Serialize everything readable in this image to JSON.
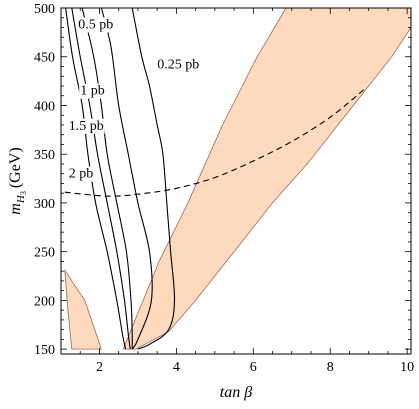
{
  "chart_data": {
    "type": "line",
    "xlabel": "tan β",
    "ylabel": "m_{H3} (GeV)",
    "ylabel_main": "m",
    "ylabel_sub": "H",
    "ylabel_subsub": "3",
    "ylabel_unit": "(GeV)",
    "xlim": [
      1,
      10.1
    ],
    "ylim": [
      145,
      500
    ],
    "x_ticks": [
      2,
      4,
      6,
      8,
      10
    ],
    "y_ticks": [
      150,
      200,
      250,
      300,
      350,
      400,
      450,
      500
    ],
    "grid": false,
    "colors": {
      "shaded_fill": "#fdd9bd",
      "shaded_edge": "#a0675a",
      "lines": "#000000"
    },
    "shaded_regions": [
      {
        "points": [
          [
            1.1,
            231
          ],
          [
            1.18,
            190
          ],
          [
            1.28,
            150
          ],
          [
            2.05,
            150
          ],
          [
            1.62,
            200
          ],
          [
            1.1,
            231
          ]
        ]
      },
      {
        "points": [
          [
            2.62,
            150
          ],
          [
            3.0,
            187
          ],
          [
            3.55,
            240
          ],
          [
            4.3,
            300
          ],
          [
            5.2,
            380
          ],
          [
            6.1,
            450
          ],
          [
            6.85,
            500
          ],
          [
            10.1,
            500
          ],
          [
            10.1,
            480
          ],
          [
            9.6,
            450
          ],
          [
            8.6,
            400
          ],
          [
            7.4,
            340
          ],
          [
            6.5,
            300
          ],
          [
            5.5,
            250
          ],
          [
            4.5,
            200
          ],
          [
            3.8,
            168
          ],
          [
            2.95,
            150
          ],
          [
            2.62,
            150
          ]
        ]
      }
    ],
    "series": [
      {
        "label": "2 pb",
        "label_pos": [
          1.2,
          326
        ],
        "points": [
          [
            1.12,
            500
          ],
          [
            1.3,
            450
          ],
          [
            1.55,
            400
          ],
          [
            1.7,
            350
          ],
          [
            1.9,
            300
          ],
          [
            2.2,
            250
          ],
          [
            2.45,
            200
          ],
          [
            2.6,
            165
          ],
          [
            2.68,
            150
          ]
        ]
      },
      {
        "label": "1.5 pb",
        "label_pos": [
          1.2,
          375
        ],
        "points": [
          [
            1.28,
            500
          ],
          [
            1.5,
            450
          ],
          [
            1.75,
            400
          ],
          [
            1.95,
            350
          ],
          [
            2.2,
            300
          ],
          [
            2.45,
            250
          ],
          [
            2.65,
            200
          ],
          [
            2.75,
            165
          ],
          [
            2.8,
            150
          ]
        ]
      },
      {
        "label": "1 pb",
        "label_pos": [
          1.5,
          411
        ],
        "points": [
          [
            1.55,
            500
          ],
          [
            1.85,
            450
          ],
          [
            2.05,
            400
          ],
          [
            2.2,
            350
          ],
          [
            2.45,
            300
          ],
          [
            2.7,
            250
          ],
          [
            2.82,
            200
          ],
          [
            2.85,
            165
          ],
          [
            2.85,
            150
          ]
        ]
      },
      {
        "label": "0.5 pb",
        "label_pos": [
          1.45,
          479
        ],
        "points": [
          [
            2.05,
            500
          ],
          [
            2.3,
            460
          ],
          [
            2.5,
            400
          ],
          [
            2.75,
            350
          ],
          [
            3.0,
            300
          ],
          [
            3.3,
            250
          ],
          [
            3.35,
            200
          ],
          [
            3.0,
            160
          ],
          [
            2.85,
            150
          ]
        ]
      },
      {
        "label": "0.25 pb",
        "label_pos": [
          3.5,
          438
        ],
        "points": [
          [
            2.85,
            500
          ],
          [
            3.1,
            450
          ],
          [
            3.3,
            420
          ],
          [
            3.5,
            380
          ],
          [
            3.65,
            350
          ],
          [
            3.75,
            300
          ],
          [
            3.85,
            250
          ],
          [
            3.95,
            200
          ],
          [
            3.8,
            170
          ],
          [
            3.3,
            155
          ],
          [
            3.0,
            150
          ]
        ]
      },
      {
        "label": "",
        "dashed": true,
        "points": [
          [
            1.1,
            311
          ],
          [
            2.2,
            307
          ],
          [
            3.0,
            309
          ],
          [
            4.0,
            315
          ],
          [
            5.0,
            326
          ],
          [
            6.0,
            343
          ],
          [
            7.0,
            363
          ],
          [
            8.0,
            388
          ],
          [
            8.9,
            417
          ]
        ]
      }
    ]
  }
}
